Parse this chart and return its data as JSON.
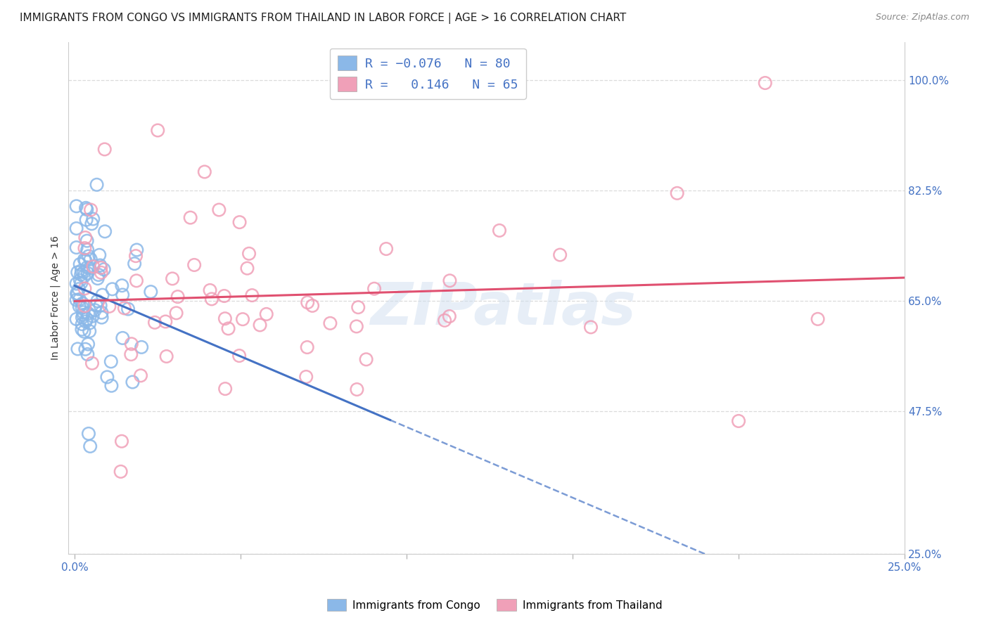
{
  "title": "IMMIGRANTS FROM CONGO VS IMMIGRANTS FROM THAILAND IN LABOR FORCE | AGE > 16 CORRELATION CHART",
  "source": "Source: ZipAtlas.com",
  "ylabel": "In Labor Force | Age > 16",
  "right_ytick_labels": [
    "100.0%",
    "82.5%",
    "65.0%",
    "47.5%",
    "25.0%"
  ],
  "right_ytick_values": [
    1.0,
    0.825,
    0.65,
    0.475,
    0.25
  ],
  "xlim": [
    -0.002,
    0.25
  ],
  "ylim": [
    0.25,
    1.06
  ],
  "congo_R": -0.076,
  "congo_N": 80,
  "thailand_R": 0.146,
  "thailand_N": 65,
  "congo_color": "#8BB8E8",
  "thailand_color": "#F0A0B8",
  "congo_line_color": "#4472C4",
  "thailand_line_color": "#E05070",
  "watermark": "ZIPatlas",
  "legend_label_congo": "Immigrants from Congo",
  "legend_label_thailand": "Immigrants from Thailand",
  "background_color": "#FFFFFF",
  "grid_color": "#CCCCCC",
  "title_fontsize": 11,
  "axis_label_fontsize": 10,
  "tick_fontsize": 11
}
